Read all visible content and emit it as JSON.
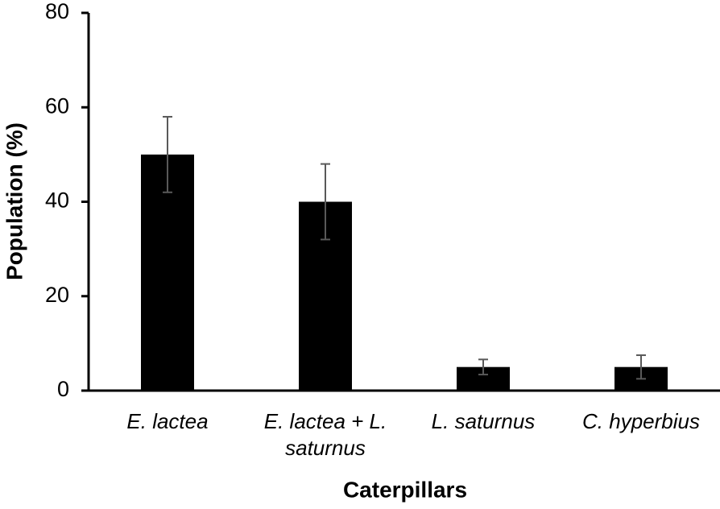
{
  "chart_data": {
    "type": "bar",
    "x_label": "Caterpillars",
    "y_label": "Population (%)",
    "categories": [
      "E. lactea",
      "E. lactea + L. saturnus",
      "L. saturnus",
      "C. hyperbius"
    ],
    "values": [
      50,
      40,
      5,
      5
    ],
    "errors": [
      8,
      8,
      1.6,
      2.5
    ],
    "color": "#000000",
    "error_color": "#595959",
    "ylim": [
      0,
      80
    ],
    "yticks": [
      0,
      20,
      40,
      60,
      80
    ],
    "grid": false
  }
}
